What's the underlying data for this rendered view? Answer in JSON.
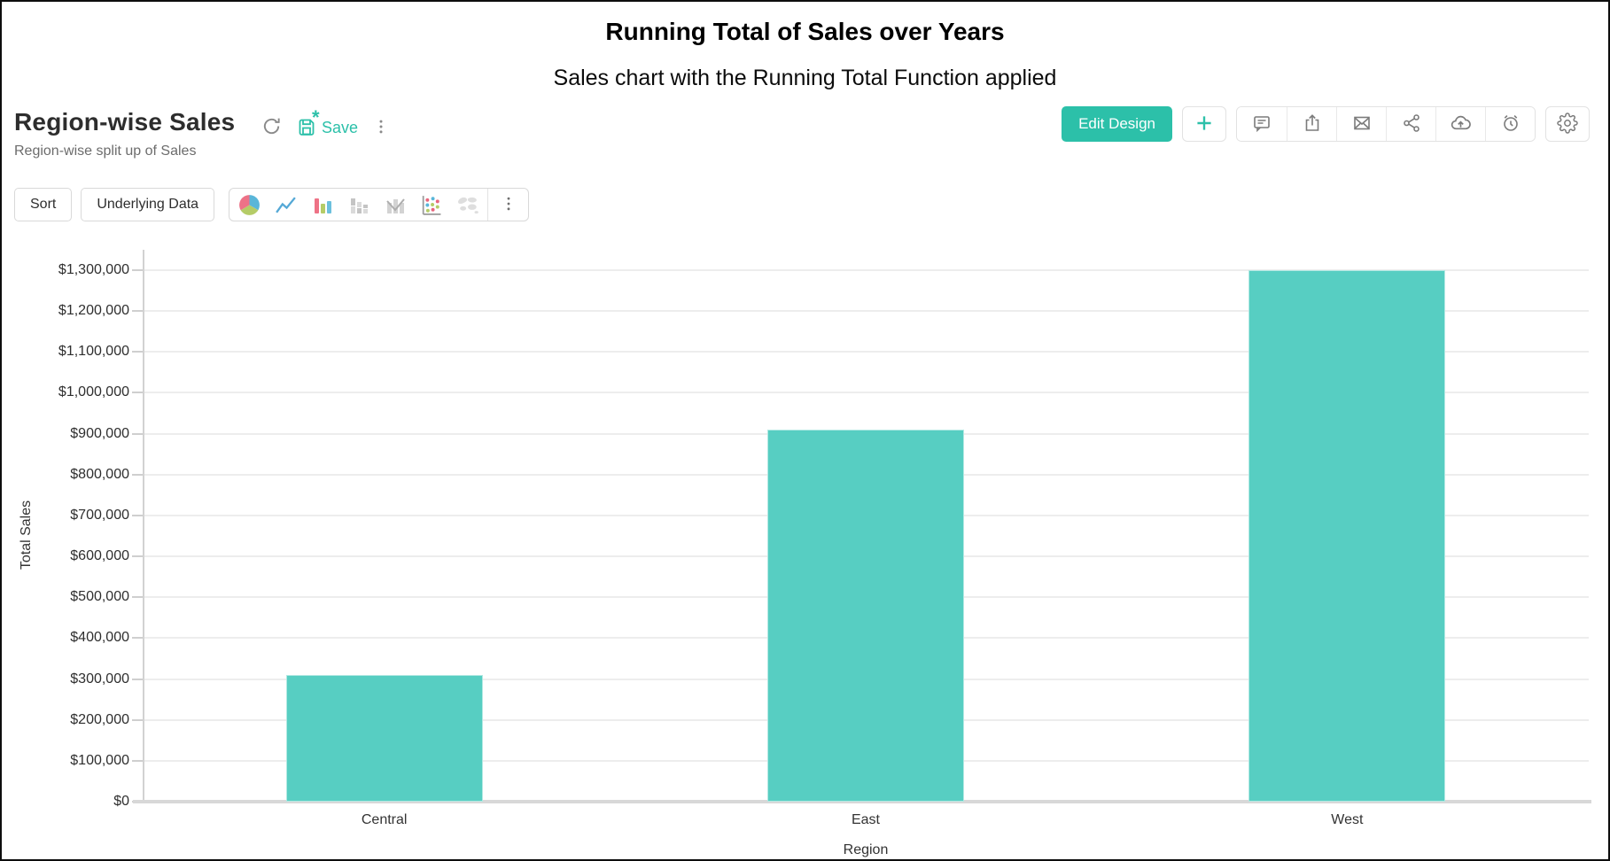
{
  "page": {
    "title": "Running Total of Sales over Years",
    "subtitle": "Sales chart with the Running Total Function applied"
  },
  "widget": {
    "title": "Region-wise Sales",
    "subtitle": "Region-wise split up of Sales",
    "save_label": "Save",
    "unsaved_marker": "*"
  },
  "header_actions": {
    "edit_design_label": "Edit Design",
    "add_label": "+",
    "icons": [
      "comment-icon",
      "export-icon",
      "email-icon",
      "share-icon",
      "cloud-upload-icon",
      "schedule-icon",
      "gear-icon"
    ]
  },
  "toolbar": {
    "sort_label": "Sort",
    "underlying_data_label": "Underlying Data",
    "chart_types": [
      "pie",
      "line",
      "bar",
      "stacked-bar",
      "combo",
      "scatter",
      "map"
    ]
  },
  "colors": {
    "accent": "#2cc0a9",
    "bar": "#57cec2",
    "icon_gray": "#7b7b7b",
    "grid": "#ededed",
    "axis": "#d2d2d2",
    "pie_pink": "#ed7287",
    "pie_blue": "#5ab6d9",
    "pie_green": "#b5cc67"
  },
  "chart_data": {
    "type": "bar",
    "categories": [
      "Central",
      "East",
      "West"
    ],
    "values": [
      310000,
      910000,
      1300000
    ],
    "title": "",
    "xlabel": "Region",
    "ylabel": "Total Sales",
    "ylim": [
      0,
      1300000
    ],
    "ytick_step": 100000,
    "ytick_prefix": "$",
    "grid": true,
    "legend": false,
    "bar_color": "#57cec2"
  }
}
